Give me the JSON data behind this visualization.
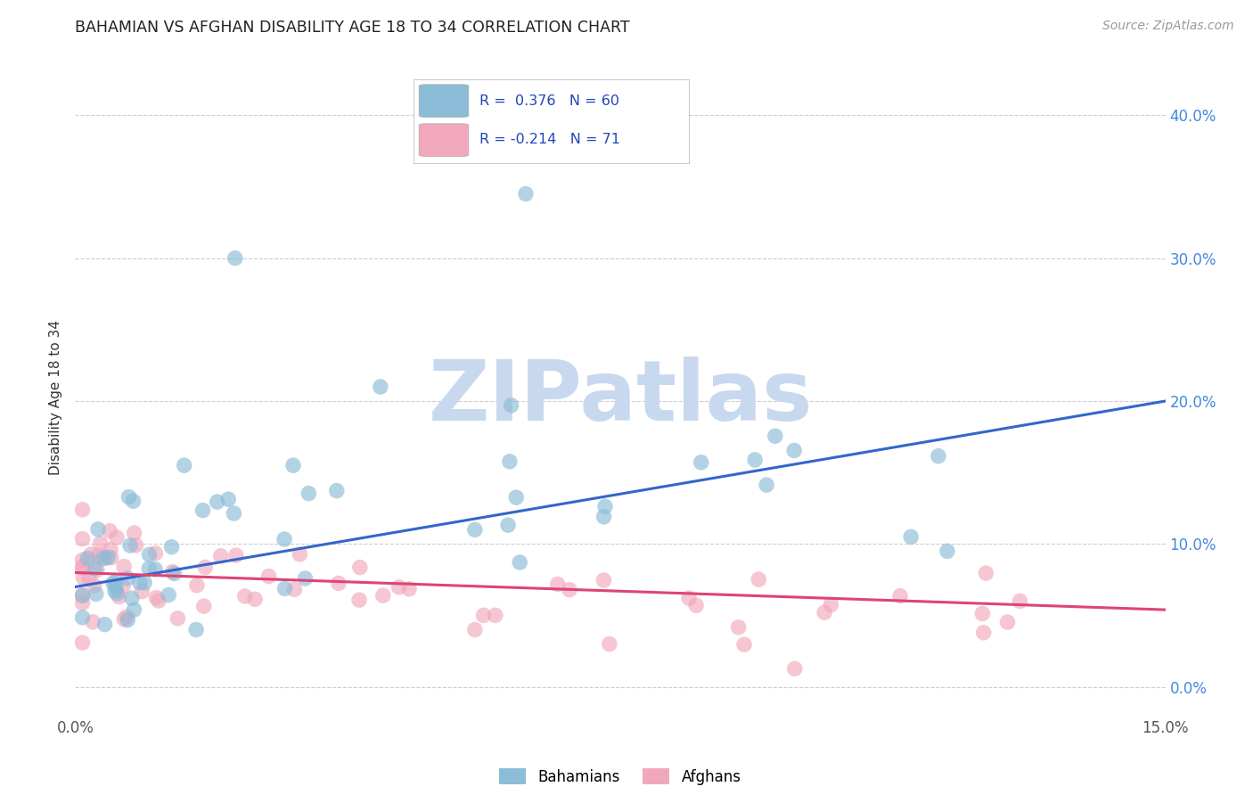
{
  "title": "BAHAMIAN VS AFGHAN DISABILITY AGE 18 TO 34 CORRELATION CHART",
  "source": "Source: ZipAtlas.com",
  "ylabel": "Disability Age 18 to 34",
  "xmin": 0.0,
  "xmax": 0.15,
  "ymin": -0.02,
  "ymax": 0.425,
  "xticks": [
    0.0,
    0.03,
    0.06,
    0.09,
    0.12,
    0.15
  ],
  "yticks": [
    0.0,
    0.1,
    0.2,
    0.3,
    0.4
  ],
  "blue_R": 0.376,
  "blue_N": 60,
  "pink_R": -0.214,
  "pink_N": 71,
  "blue_color": "#8BBCD8",
  "pink_color": "#F2A8BC",
  "blue_line_color": "#3366CC",
  "pink_line_color": "#DD4477",
  "watermark_color": "#C8D8EE",
  "legend_label_blue": "Bahamians",
  "legend_label_pink": "Afghans",
  "ytick_color": "#4488DD",
  "xtick_color": "#555555"
}
